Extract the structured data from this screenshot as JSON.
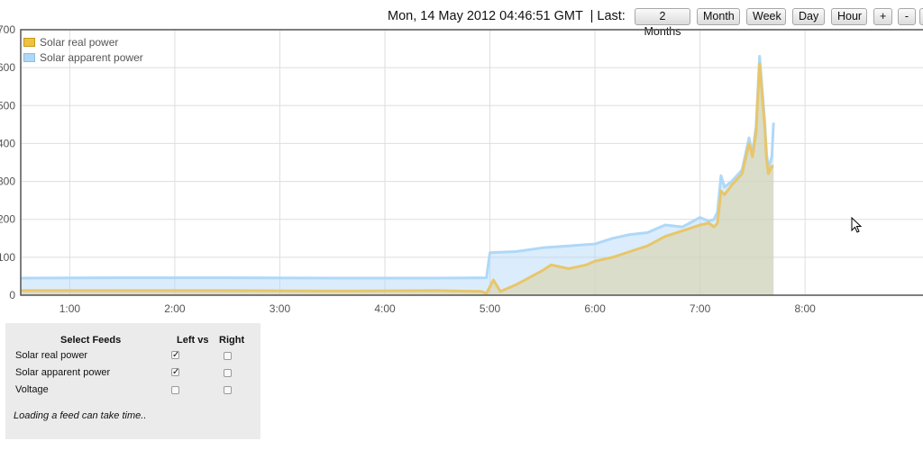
{
  "header": {
    "datetime": "Mon, 14 May 2012 04:46:51 GMT",
    "separator": "| Last:",
    "range_buttons": [
      "2 Months",
      "Month",
      "Week",
      "Day",
      "Hour"
    ],
    "zoom_buttons": [
      "+",
      "-"
    ]
  },
  "chart_data": {
    "type": "area",
    "ylim": [
      0,
      700
    ],
    "yticks": [
      0,
      100,
      200,
      300,
      400,
      500,
      600,
      700
    ],
    "ytick_labels": [
      "0",
      "100",
      "200",
      "300",
      "400",
      "500",
      "600",
      "700"
    ],
    "xlim": [
      "00:32",
      "09:12"
    ],
    "xticks": [
      "01:00",
      "02:00",
      "03:00",
      "04:00",
      "05:00",
      "06:00",
      "07:00",
      "08:00"
    ],
    "xtick_labels": [
      "1:00",
      "2:00",
      "3:00",
      "4:00",
      "5:00",
      "6:00",
      "7:00",
      "8:00"
    ],
    "grid": true,
    "legend_position": "top-left",
    "series": [
      {
        "name": "Solar apparent power",
        "color": "#afd8f8",
        "points": [
          [
            "00:32",
            45
          ],
          [
            "01:30",
            46
          ],
          [
            "02:30",
            46
          ],
          [
            "03:30",
            45
          ],
          [
            "04:30",
            45
          ],
          [
            "04:58",
            46
          ],
          [
            "05:00",
            112
          ],
          [
            "05:15",
            115
          ],
          [
            "05:30",
            125
          ],
          [
            "05:45",
            130
          ],
          [
            "06:00",
            135
          ],
          [
            "06:10",
            150
          ],
          [
            "06:20",
            160
          ],
          [
            "06:30",
            165
          ],
          [
            "06:40",
            185
          ],
          [
            "06:50",
            180
          ],
          [
            "07:00",
            205
          ],
          [
            "07:05",
            195
          ],
          [
            "07:08",
            200
          ],
          [
            "07:10",
            220
          ],
          [
            "07:12",
            315
          ],
          [
            "07:14",
            285
          ],
          [
            "07:18",
            300
          ],
          [
            "07:24",
            330
          ],
          [
            "07:28",
            415
          ],
          [
            "07:30",
            375
          ],
          [
            "07:32",
            445
          ],
          [
            "07:34",
            630
          ],
          [
            "07:37",
            455
          ],
          [
            "07:38",
            375
          ],
          [
            "07:39",
            335
          ],
          [
            "07:41",
            365
          ],
          [
            "07:42",
            455
          ]
        ]
      },
      {
        "name": "Solar real power",
        "color": "#edc240",
        "points": [
          [
            "00:32",
            12
          ],
          [
            "01:30",
            12
          ],
          [
            "02:30",
            12
          ],
          [
            "03:30",
            11
          ],
          [
            "04:30",
            12
          ],
          [
            "04:55",
            10
          ],
          [
            "04:58",
            5
          ],
          [
            "05:02",
            40
          ],
          [
            "05:06",
            10
          ],
          [
            "05:15",
            28
          ],
          [
            "05:20",
            40
          ],
          [
            "05:30",
            65
          ],
          [
            "05:35",
            80
          ],
          [
            "05:45",
            70
          ],
          [
            "05:55",
            80
          ],
          [
            "06:00",
            90
          ],
          [
            "06:10",
            100
          ],
          [
            "06:20",
            115
          ],
          [
            "06:30",
            130
          ],
          [
            "06:40",
            155
          ],
          [
            "06:50",
            170
          ],
          [
            "07:00",
            185
          ],
          [
            "07:05",
            190
          ],
          [
            "07:08",
            180
          ],
          [
            "07:10",
            190
          ],
          [
            "07:12",
            275
          ],
          [
            "07:14",
            265
          ],
          [
            "07:18",
            290
          ],
          [
            "07:24",
            320
          ],
          [
            "07:28",
            400
          ],
          [
            "07:30",
            365
          ],
          [
            "07:32",
            430
          ],
          [
            "07:34",
            610
          ],
          [
            "07:37",
            440
          ],
          [
            "07:38",
            360
          ],
          [
            "07:39",
            320
          ],
          [
            "07:41",
            340
          ],
          [
            "07:42",
            340
          ]
        ]
      }
    ]
  },
  "feeds": {
    "title": "Select Feeds",
    "col_left": "Left vs",
    "col_right": "Right",
    "items": [
      {
        "label": "Solar real power",
        "left": true,
        "right": false
      },
      {
        "label": "Solar apparent power",
        "left": true,
        "right": false
      },
      {
        "label": "Voltage",
        "left": false,
        "right": false
      }
    ],
    "note": "Loading a feed can take time.."
  }
}
